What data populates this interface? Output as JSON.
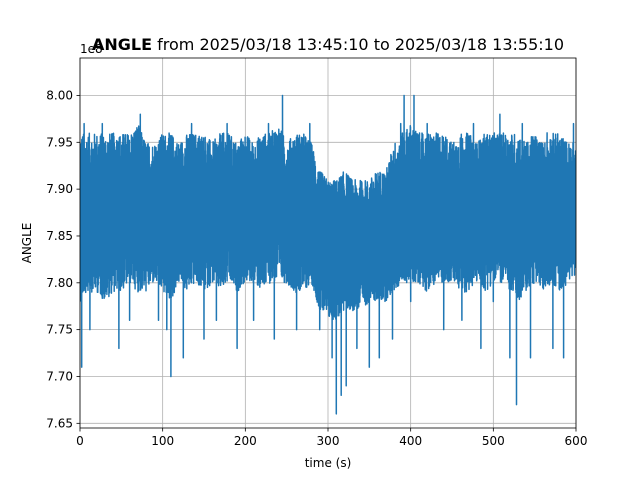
{
  "chart_data": {
    "type": "line",
    "title_bold": "ANGLE",
    "title_rest": " from 2025/03/18 13:45:10 to 2025/03/18 13:55:10",
    "xlabel": "time (s)",
    "ylabel": "ANGLE",
    "offset_text": "1e8",
    "xlim": [
      0,
      600
    ],
    "ylim": [
      7.645,
      8.04
    ],
    "x_ticks": [
      0,
      100,
      200,
      300,
      400,
      500,
      600
    ],
    "x_tick_labels": [
      "0",
      "100",
      "200",
      "300",
      "400",
      "500",
      "600"
    ],
    "y_ticks": [
      7.65,
      7.7,
      7.75,
      7.8,
      7.85,
      7.9,
      7.95,
      8.0
    ],
    "y_tick_labels": [
      "7.65",
      "7.70",
      "7.75",
      "7.80",
      "7.85",
      "7.90",
      "7.95",
      "8.00"
    ],
    "grid": true,
    "series": [
      {
        "color": "#1f77b4",
        "x": [
          0,
          10,
          20,
          30,
          40,
          50,
          60,
          70,
          80,
          90,
          100,
          110,
          120,
          130,
          140,
          150,
          160,
          170,
          180,
          190,
          200,
          210,
          220,
          230,
          240,
          250,
          260,
          270,
          280,
          290,
          300,
          310,
          320,
          330,
          340,
          350,
          360,
          370,
          380,
          390,
          400,
          410,
          420,
          430,
          440,
          450,
          460,
          470,
          480,
          490,
          500,
          510,
          520,
          530,
          540,
          550,
          560,
          570,
          580,
          590,
          600
        ],
        "upper": [
          7.96,
          7.96,
          7.96,
          7.96,
          7.96,
          7.96,
          7.96,
          7.97,
          7.95,
          7.95,
          7.96,
          7.96,
          7.95,
          7.96,
          7.96,
          7.96,
          7.95,
          7.96,
          7.96,
          7.95,
          7.96,
          7.95,
          7.96,
          7.96,
          7.97,
          7.95,
          7.96,
          7.96,
          7.95,
          7.92,
          7.91,
          7.91,
          7.92,
          7.91,
          7.91,
          7.91,
          7.92,
          7.92,
          7.95,
          7.96,
          7.97,
          7.96,
          7.96,
          7.96,
          7.96,
          7.95,
          7.96,
          7.96,
          7.95,
          7.96,
          7.96,
          7.96,
          7.96,
          7.96,
          7.95,
          7.96,
          7.95,
          7.96,
          7.96,
          7.95,
          7.95
        ],
        "lower": [
          7.78,
          7.79,
          7.79,
          7.78,
          7.79,
          7.79,
          7.8,
          7.79,
          7.79,
          7.8,
          7.79,
          7.78,
          7.8,
          7.79,
          7.8,
          7.79,
          7.8,
          7.79,
          7.8,
          7.79,
          7.8,
          7.8,
          7.79,
          7.8,
          7.8,
          7.8,
          7.79,
          7.79,
          7.8,
          7.77,
          7.76,
          7.76,
          7.77,
          7.77,
          7.77,
          7.78,
          7.78,
          7.78,
          7.79,
          7.8,
          7.8,
          7.8,
          7.79,
          7.8,
          7.8,
          7.8,
          7.79,
          7.79,
          7.8,
          7.79,
          7.8,
          7.8,
          7.79,
          7.78,
          7.79,
          7.8,
          7.79,
          7.8,
          7.79,
          7.8,
          7.81
        ],
        "spikes": [
          [
            2,
            7.71
          ],
          [
            5,
            7.97
          ],
          [
            12,
            7.75
          ],
          [
            27,
            7.97
          ],
          [
            38,
            7.95
          ],
          [
            47,
            7.73
          ],
          [
            60,
            7.76
          ],
          [
            73,
            7.98
          ],
          [
            95,
            7.76
          ],
          [
            105,
            7.75
          ],
          [
            110,
            7.7
          ],
          [
            125,
            7.72
          ],
          [
            135,
            7.97
          ],
          [
            150,
            7.74
          ],
          [
            165,
            7.76
          ],
          [
            178,
            7.97
          ],
          [
            190,
            7.73
          ],
          [
            210,
            7.76
          ],
          [
            228,
            7.97
          ],
          [
            235,
            7.74
          ],
          [
            245,
            8.0
          ],
          [
            262,
            7.75
          ],
          [
            278,
            7.97
          ],
          [
            290,
            7.75
          ],
          [
            305,
            7.72
          ],
          [
            310,
            7.66
          ],
          [
            316,
            7.68
          ],
          [
            322,
            7.69
          ],
          [
            335,
            7.73
          ],
          [
            350,
            7.71
          ],
          [
            362,
            7.72
          ],
          [
            378,
            7.74
          ],
          [
            388,
            7.97
          ],
          [
            392,
            8.0
          ],
          [
            400,
            7.78
          ],
          [
            404,
            8.0
          ],
          [
            420,
            7.97
          ],
          [
            440,
            7.75
          ],
          [
            462,
            7.76
          ],
          [
            476,
            7.97
          ],
          [
            485,
            7.73
          ],
          [
            500,
            7.78
          ],
          [
            508,
            7.98
          ],
          [
            520,
            7.72
          ],
          [
            528,
            7.67
          ],
          [
            535,
            7.97
          ],
          [
            545,
            7.72
          ],
          [
            565,
            7.96
          ],
          [
            572,
            7.73
          ],
          [
            585,
            7.72
          ],
          [
            597,
            7.97
          ]
        ]
      }
    ]
  }
}
